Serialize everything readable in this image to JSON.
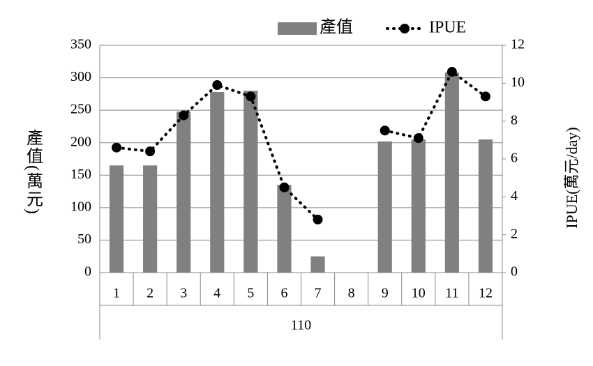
{
  "chart_data": {
    "type": "bar-line",
    "categories": [
      "1",
      "2",
      "3",
      "4",
      "5",
      "6",
      "7",
      "8",
      "9",
      "10",
      "11",
      "12"
    ],
    "x_group_label": "110",
    "y_label": "產值(萬元)",
    "y2_label": "IPUE(萬元/day)",
    "series": [
      {
        "name": "產值",
        "type": "bar",
        "color": "#808080",
        "values": [
          165,
          165,
          248,
          278,
          280,
          135,
          25,
          null,
          202,
          205,
          308,
          205
        ]
      },
      {
        "name": "IPUE",
        "type": "line",
        "axis": "y2",
        "color": "#000000",
        "values": [
          6.6,
          6.4,
          8.3,
          9.9,
          9.3,
          4.5,
          2.8,
          null,
          7.5,
          7.1,
          10.6,
          9.3
        ]
      }
    ],
    "ylim": [
      0,
      350
    ],
    "yticks": [
      0,
      50,
      100,
      150,
      200,
      250,
      300,
      350
    ],
    "y2lim": [
      0,
      12
    ],
    "y2ticks": [
      0,
      2,
      4,
      6,
      8,
      10,
      12
    ],
    "grid": true,
    "legend": "top"
  }
}
